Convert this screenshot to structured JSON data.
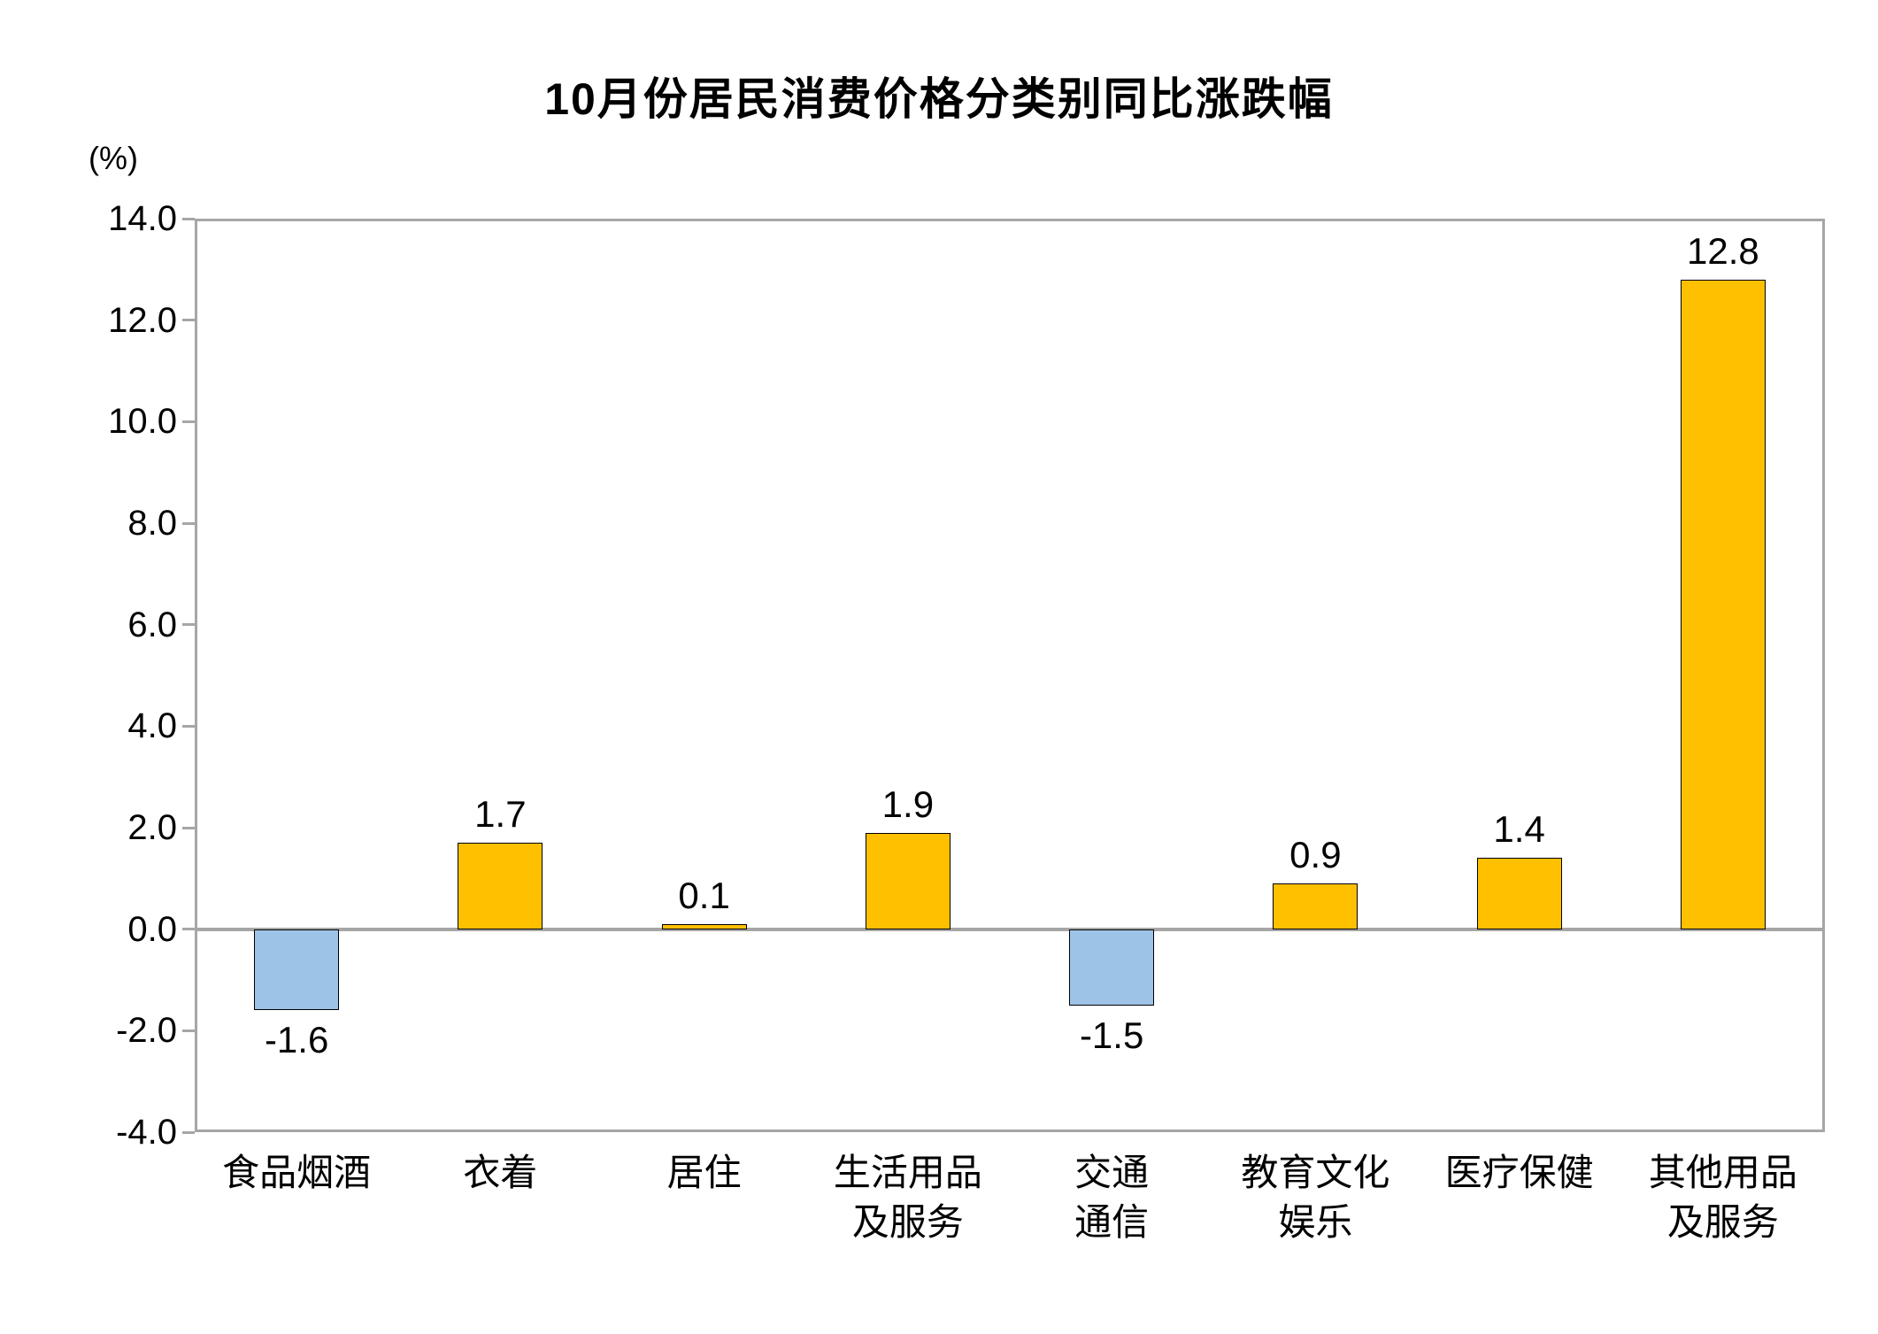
{
  "chart_data": {
    "type": "bar",
    "title": "10月份居民消费价格分类别同比涨跌幅",
    "unit_label": "(%)",
    "categories": [
      [
        "食品烟酒"
      ],
      [
        "衣着"
      ],
      [
        "居住"
      ],
      [
        "生活用品",
        "及服务"
      ],
      [
        "交通",
        "通信"
      ],
      [
        "教育文化",
        "娱乐"
      ],
      [
        "医疗保健"
      ],
      [
        "其他用品",
        "及服务"
      ]
    ],
    "values": [
      -1.6,
      1.7,
      0.1,
      1.9,
      -1.5,
      0.9,
      1.4,
      12.8
    ],
    "value_labels": [
      "-1.6",
      "1.7",
      "0.1",
      "1.9",
      "-1.5",
      "0.9",
      "1.4",
      "12.8"
    ],
    "ylim": [
      -4.0,
      14.0
    ],
    "ytick_step": 2.0,
    "ytick_labels": [
      "14.0",
      "12.0",
      "10.0",
      "8.0",
      "6.0",
      "4.0",
      "2.0",
      "0.0",
      "-2.0",
      "-4.0"
    ],
    "xlabel": "",
    "ylabel": "(%)",
    "grid": false,
    "legend": false,
    "colors": {
      "positive_bar": "#FFC000",
      "negative_bar": "#9DC3E6",
      "bar_border": "#000000",
      "axis": "#A6A6A6",
      "text": "#000000",
      "background": "#FFFFFF"
    }
  }
}
